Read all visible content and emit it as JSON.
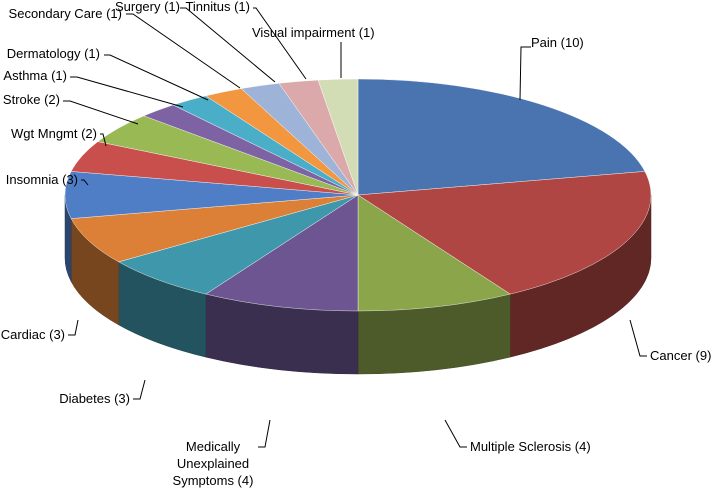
{
  "chart_data": {
    "type": "pie",
    "title": "",
    "legend": "none",
    "style": "3d",
    "slices": [
      {
        "label": "Pain (10)",
        "value": 10,
        "color": "#4a74b0"
      },
      {
        "label": "Cancer (9)",
        "value": 9,
        "color": "#b04644"
      },
      {
        "label": "Multiple Sclerosis (4)",
        "value": 4,
        "color": "#8ba54a"
      },
      {
        "label": "Medically Unexplained Symptoms (4)",
        "value": 4,
        "color": "#6c5590"
      },
      {
        "label": "Diabetes (3)",
        "value": 3,
        "color": "#3f97ac"
      },
      {
        "label": "Cardiac (3)",
        "value": 3,
        "color": "#db8036"
      },
      {
        "label": "Insomnia (3)",
        "value": 3,
        "color": "#4f7ec6"
      },
      {
        "label": "Wgt  Mngmt (2)",
        "value": 2,
        "color": "#c84f4c"
      },
      {
        "label": "Stroke (2)",
        "value": 2,
        "color": "#98b954"
      },
      {
        "label": "Asthma (1)",
        "value": 1,
        "color": "#7d63a4"
      },
      {
        "label": "Dermatology (1)",
        "value": 1,
        "color": "#4baec8"
      },
      {
        "label": "Secondary Care (1)",
        "value": 1,
        "color": "#f29640"
      },
      {
        "label": "Surgery (1)",
        "value": 1,
        "color": "#9eb3d8"
      },
      {
        "label": "Tinnitus (1)",
        "value": 1,
        "color": "#dca9aa"
      },
      {
        "label": "Visual impairment (1)",
        "value": 1,
        "color": "#d2ddb6"
      }
    ]
  }
}
